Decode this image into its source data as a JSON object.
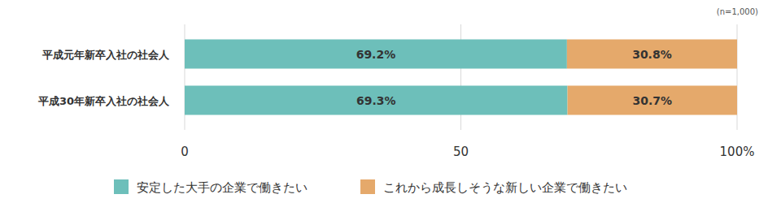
{
  "chart_data": {
    "type": "bar",
    "orientation": "horizontal",
    "stacked": true,
    "data_labels": true,
    "grid": true,
    "legend": "bottom",
    "annotations": [
      "(n=1,000)"
    ],
    "categories": [
      "平成元年新卒入社の社会人",
      "平成30年新卒入社の社会人"
    ],
    "series": [
      {
        "name": "安定した大手の企業で働きたい",
        "color": "#6dbfba",
        "values": [
          69.2,
          69.3
        ],
        "value_labels": [
          "69.2%",
          "69.3%"
        ]
      },
      {
        "name": "これから成長しそうな新しい企業で働きたい",
        "color": "#e5a96b",
        "values": [
          30.8,
          30.7
        ],
        "value_labels": [
          "30.8%",
          "30.7%"
        ]
      }
    ],
    "xlim": [
      0,
      100
    ],
    "xticks": [
      0,
      50,
      {
        "value": 100,
        "label": "100%"
      }
    ]
  }
}
